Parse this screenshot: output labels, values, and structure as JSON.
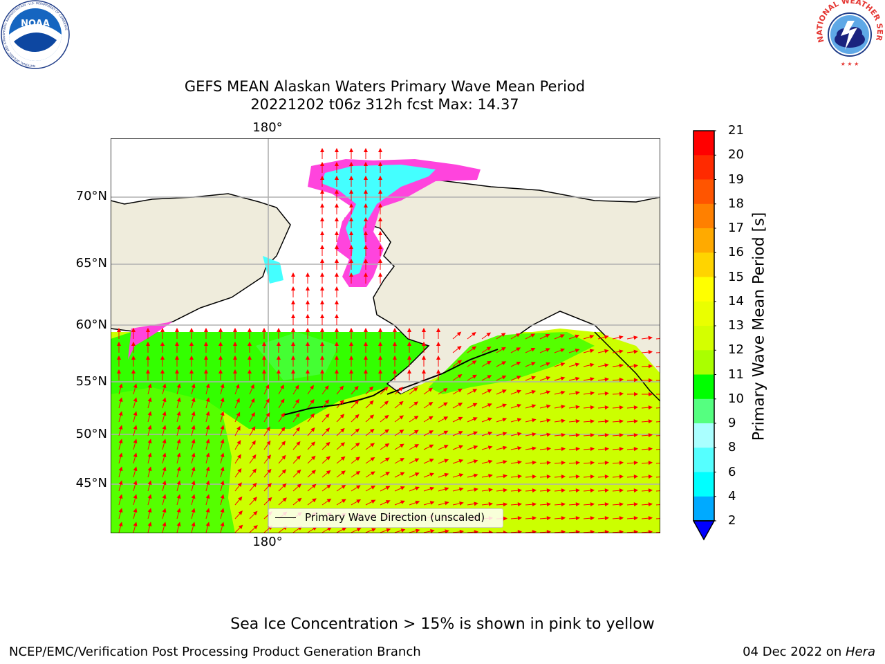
{
  "title_line1": "GEFS MEAN Alaskan Waters Primary Wave Mean Period",
  "title_line2": "20221202 t06z 312h fcst   Max: 14.37",
  "map": {
    "lat_labels": [
      "70°N",
      "65°N",
      "60°N",
      "55°N",
      "50°N",
      "45°N"
    ],
    "lon_label_top": "180°",
    "lon_label_bottom": "180°",
    "legend_label": "Primary Wave Direction (unscaled)"
  },
  "colorbar": {
    "label": "Primary Wave Mean Period [s]",
    "ticks": [
      "21",
      "20",
      "19",
      "18",
      "17",
      "16",
      "15",
      "14",
      "13",
      "12",
      "11",
      "10",
      "9",
      "8",
      "6",
      "4",
      "2"
    ],
    "colors": [
      "#ff0000",
      "#ff2a00",
      "#ff5500",
      "#ff8000",
      "#ffaa00",
      "#ffd400",
      "#ffff00",
      "#eaff00",
      "#d4ff00",
      "#aaff00",
      "#00ff00",
      "#55ff80",
      "#aaffff",
      "#55ffff",
      "#00ffff",
      "#00aaff",
      "#0080ff"
    ],
    "extend_color": "#0000ff"
  },
  "colors": {
    "land": "#efecdc",
    "ice_pink": "#ff44dd",
    "ice_cyan": "#44ffff",
    "wave_green": "#33ff00",
    "wave_yellow": "#ccff00",
    "arrow": "#ff0000"
  },
  "logos": {
    "noaa_text": "NOAA",
    "noaa_ring": "NATIONAL OCEANIC AND ATMOSPHERIC ADMINISTRATION · U.S. DEPARTMENT OF COMMERCE",
    "nws_ring": "NATIONAL WEATHER SERVICE"
  },
  "footer": {
    "note": "Sea Ice Concentration > 15% is shown in pink to yellow",
    "left": "NCEP/EMC/Verification Post Processing Product Generation Branch",
    "right_date": "04 Dec 2022 on ",
    "right_host": "Hera"
  }
}
